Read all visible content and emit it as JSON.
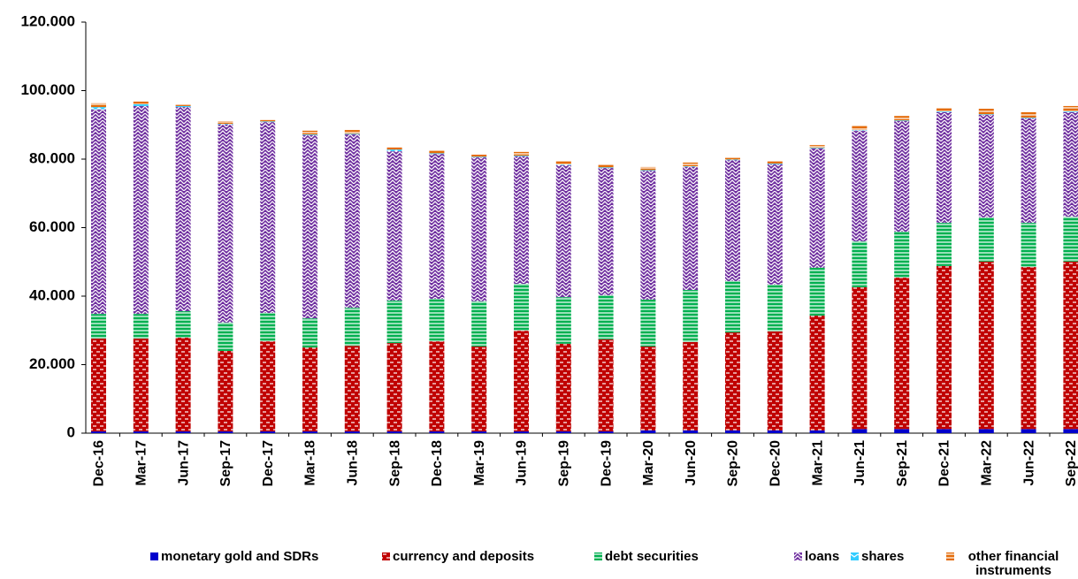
{
  "chart_data": {
    "type": "stacked_bar",
    "categories": [
      "Dec-16",
      "Mar-17",
      "Jun-17",
      "Sep-17",
      "Dec-17",
      "Mar-18",
      "Jun-18",
      "Sep-18",
      "Dec-18",
      "Mar-19",
      "Jun-19",
      "Sep-19",
      "Dec-19",
      "Mar-20",
      "Jun-20",
      "Sep-20",
      "Dec-20",
      "Mar-21",
      "Jun-21",
      "Sep-21",
      "Dec-21",
      "Mar-22",
      "Jun-22",
      "Sep-22"
    ],
    "series": [
      {
        "name": "monetary gold and SDRs",
        "color": "#0000cc",
        "values": [
          500,
          500,
          500,
          500,
          500,
          500,
          500,
          500,
          500,
          500,
          500,
          500,
          500,
          800,
          800,
          800,
          800,
          800,
          1200,
          1200,
          1200,
          1200,
          1200,
          1200
        ]
      },
      {
        "name": "currency and deposits",
        "color": "#c00000",
        "values": [
          27100,
          27100,
          27400,
          23500,
          26300,
          24500,
          25000,
          25800,
          26300,
          24800,
          29400,
          25600,
          26900,
          24500,
          25800,
          28600,
          28900,
          33500,
          41400,
          44200,
          47600,
          48900,
          47300,
          48900
        ]
      },
      {
        "name": "debt securities",
        "color": "#00b050",
        "values": [
          7200,
          7200,
          7700,
          8300,
          8300,
          8500,
          11100,
          12400,
          12400,
          13200,
          13700,
          13600,
          12900,
          13700,
          15200,
          15000,
          13700,
          14000,
          13400,
          13400,
          12600,
          12900,
          12900,
          13100
        ]
      },
      {
        "name": "loans",
        "color": "#7030a0",
        "values": [
          59700,
          60700,
          59600,
          57800,
          55700,
          53500,
          50600,
          43600,
          42300,
          42000,
          37200,
          38500,
          37100,
          37600,
          35900,
          35300,
          35100,
          34800,
          32300,
          32300,
          32300,
          29900,
          30500,
          30500
        ]
      },
      {
        "name": "shares",
        "color": "#33ccff",
        "values": [
          700,
          500,
          300,
          200,
          200,
          200,
          200,
          500,
          200,
          200,
          200,
          200,
          200,
          200,
          200,
          200,
          200,
          200,
          200,
          200,
          200,
          200,
          200,
          200
        ]
      },
      {
        "name": "other financial instruments",
        "color": "#e46c0a",
        "values": [
          1100,
          800,
          500,
          800,
          400,
          1100,
          1100,
          600,
          900,
          600,
          1100,
          1100,
          900,
          900,
          1100,
          600,
          800,
          800,
          1300,
          1300,
          1100,
          1600,
          1600,
          1600
        ]
      }
    ],
    "ylim": [
      0,
      120000
    ],
    "yticks": [
      0,
      {
        "value": 20000,
        "label": "20.000"
      },
      {
        "value": 40000,
        "label": "40.000"
      },
      {
        "value": 60000,
        "label": "60.000"
      },
      {
        "value": 80000,
        "label": "80.000"
      },
      {
        "value": 100000,
        "label": "100.000"
      },
      {
        "value": 120000,
        "label": "120.000"
      }
    ],
    "grid": false,
    "legend": "bottom"
  }
}
